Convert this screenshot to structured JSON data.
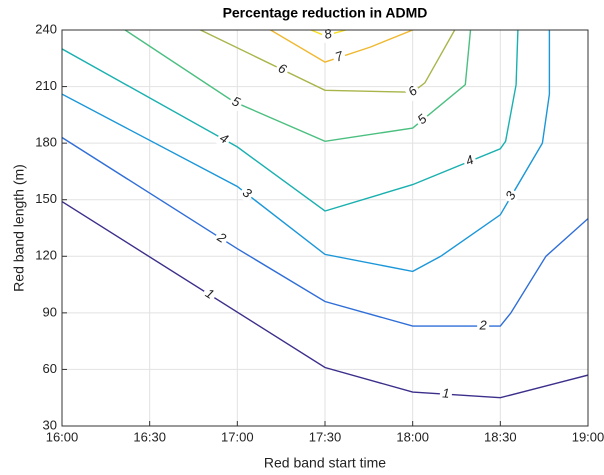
{
  "chart_data": {
    "type": "contour",
    "title": "Percentage reduction in ADMD",
    "x_label": "Red band start time",
    "y_label": "Red band length (m)",
    "xlim": [
      16,
      19
    ],
    "xticks": [
      {
        "value": 16,
        "label": "16:00"
      },
      {
        "value": 16.5,
        "label": "16:30"
      },
      {
        "value": 17,
        "label": "17:00"
      },
      {
        "value": 17.5,
        "label": "17:30"
      },
      {
        "value": 18,
        "label": "18:00"
      },
      {
        "value": 18.5,
        "label": "18:30"
      },
      {
        "value": 19,
        "label": "19:00"
      }
    ],
    "ylim": [
      30,
      240
    ],
    "yticks": [
      30,
      60,
      90,
      120,
      150,
      180,
      210,
      240
    ],
    "grid": true,
    "series": [
      {
        "name": "1",
        "color": "#3b2f8b",
        "x": [
          16,
          17.5,
          18,
          18.5,
          19
        ],
        "values": [
          149,
          61,
          48,
          45,
          57
        ]
      },
      {
        "name": "2",
        "color": "#2f6ed8",
        "x": [
          16,
          17,
          17.5,
          18,
          18.5,
          18.56,
          18.76,
          19
        ],
        "values": [
          183,
          124,
          96,
          83,
          83,
          90,
          120,
          140
        ]
      },
      {
        "name": "3",
        "color": "#1b97d9",
        "x": [
          16,
          17,
          17.5,
          18,
          18.16,
          18.5,
          18.74,
          18.78,
          18.78
        ],
        "values": [
          206,
          157,
          121,
          112,
          120,
          142,
          180,
          206,
          240
        ]
      },
      {
        "name": "4",
        "color": "#1ab0b0",
        "x": [
          16,
          17,
          17.5,
          18,
          18.5,
          18.53,
          18.59,
          18.6
        ],
        "values": [
          230,
          178,
          144,
          158,
          177,
          181,
          211,
          240
        ]
      },
      {
        "name": "5",
        "color": "#4bbf80",
        "x": [
          16.36,
          16.98,
          17.5,
          18,
          18.3,
          18.33
        ],
        "values": [
          240,
          202,
          181,
          188,
          211,
          240
        ]
      },
      {
        "name": "6",
        "color": "#a9b54a",
        "x": [
          16.79,
          17.5,
          18,
          18.07,
          18.24
        ],
        "values": [
          240,
          208,
          207,
          212,
          240
        ]
      },
      {
        "name": "7",
        "color": "#f0b830",
        "x": [
          17.19,
          17.5,
          17.76,
          18
        ],
        "values": [
          240,
          223,
          231,
          240
        ]
      },
      {
        "name": "8",
        "color": "#f8e020",
        "x": [
          17.42,
          17.5,
          17.62
        ],
        "values": [
          240,
          237,
          240
        ]
      }
    ]
  }
}
